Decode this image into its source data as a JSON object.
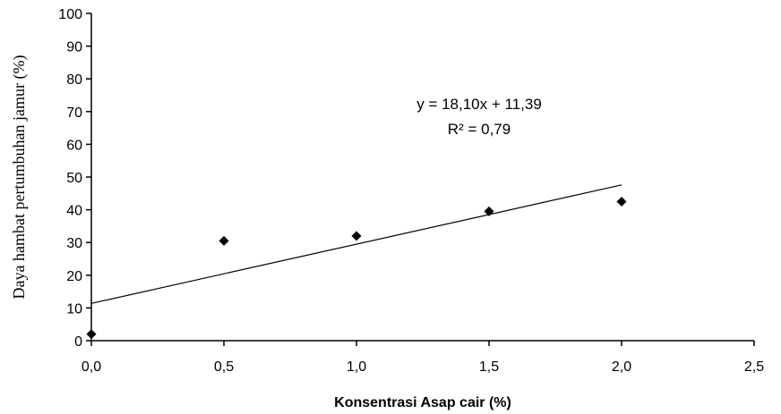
{
  "chart_data": {
    "type": "scatter",
    "x": [
      0.0,
      0.5,
      1.0,
      1.5,
      2.0
    ],
    "y": [
      2,
      30.5,
      32,
      39.5,
      42.5
    ],
    "xlabel": "Konsentrasi  Asap cair (%)",
    "ylabel": "Daya hambat pertumbuhan jamur  (%)",
    "xlim": [
      0,
      2.5
    ],
    "ylim": [
      0,
      100
    ],
    "xticks": [
      "0,0",
      "0,5",
      "1,0",
      "1,5",
      "2,0",
      "2,5"
    ],
    "yticks": [
      "0",
      "10",
      "20",
      "30",
      "40",
      "50",
      "60",
      "70",
      "80",
      "90",
      "100"
    ],
    "trendline": {
      "slope": 18.1,
      "intercept": 11.39,
      "x_range": [
        0,
        2
      ]
    },
    "equation": "y = 18,10x + 11,39",
    "r_squared": "R² = 0,79",
    "grid": false,
    "legend": "none",
    "marker": "diamond",
    "marker_color": "#000000"
  }
}
